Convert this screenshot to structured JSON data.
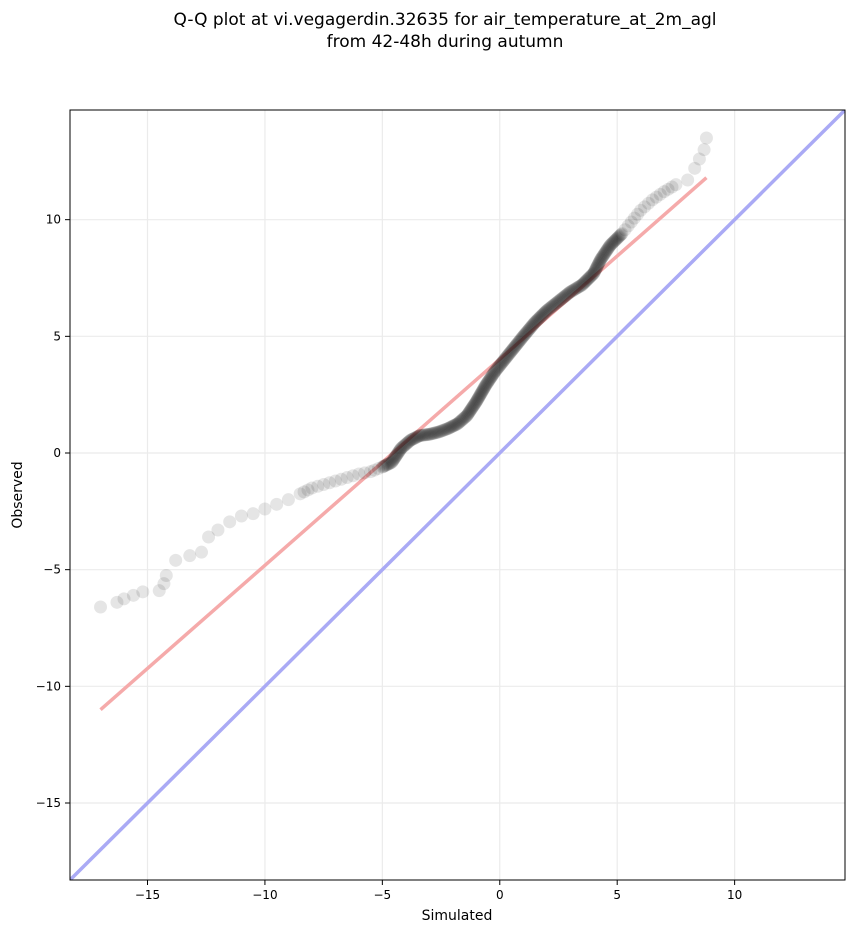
{
  "chart_data": {
    "type": "scatter",
    "title": [
      "Q-Q plot at vi.vegagerdin.32635 for air_temperature_at_2m_agl",
      "from 42-48h during autumn"
    ],
    "xlabel": "Simulated",
    "ylabel": "Observed",
    "xlim": [
      -18.3,
      14.7
    ],
    "ylim": [
      -18.3,
      14.7
    ],
    "xticks": [
      -15,
      -10,
      -5,
      0,
      5,
      10
    ],
    "yticks": [
      -15,
      -10,
      -5,
      0,
      5,
      10
    ],
    "xtick_labels": [
      "−15",
      "−10",
      "−5",
      "0",
      "5",
      "10"
    ],
    "ytick_labels": [
      "−15",
      "−10",
      "−5",
      "0",
      "5",
      "10"
    ],
    "grid": true,
    "reference_line": {
      "points": [
        [
          -18.3,
          -18.3
        ],
        [
          14.7,
          14.7
        ]
      ],
      "color": "#aaaaf5"
    },
    "fit_line": {
      "points": [
        [
          -17.0,
          -11.0
        ],
        [
          8.8,
          11.8
        ]
      ],
      "color": "#f5aaaa"
    },
    "points_color": "#000000",
    "quantile_curve": [
      [
        -17.0,
        -6.6
      ],
      [
        -16.3,
        -6.4
      ],
      [
        -16.0,
        -6.25
      ],
      [
        -15.2,
        -5.95
      ],
      [
        -14.5,
        -5.9
      ],
      [
        -14.3,
        -5.6
      ],
      [
        -14.2,
        -5.25
      ],
      [
        -13.8,
        -4.6
      ],
      [
        -13.2,
        -4.4
      ],
      [
        -12.7,
        -4.25
      ],
      [
        -12.4,
        -3.6
      ],
      [
        -12.0,
        -3.3
      ],
      [
        -11.5,
        -2.95
      ],
      [
        -11.0,
        -2.7
      ],
      [
        -10.5,
        -2.6
      ],
      [
        -10.0,
        -2.4
      ],
      [
        -9.5,
        -2.2
      ],
      [
        -9.0,
        -2.0
      ],
      [
        -8.5,
        -1.75
      ],
      [
        -8.0,
        -1.5
      ],
      [
        -7.5,
        -1.35
      ],
      [
        -7.0,
        -1.2
      ],
      [
        -6.5,
        -1.05
      ],
      [
        -6.0,
        -0.9
      ],
      [
        -5.5,
        -0.8
      ],
      [
        -5.0,
        -0.6
      ],
      [
        -4.6,
        -0.4
      ],
      [
        -4.2,
        0.2
      ],
      [
        -3.8,
        0.55
      ],
      [
        -3.4,
        0.75
      ],
      [
        -3.0,
        0.8
      ],
      [
        -2.6,
        0.9
      ],
      [
        -2.2,
        1.05
      ],
      [
        -1.8,
        1.25
      ],
      [
        -1.4,
        1.6
      ],
      [
        -1.0,
        2.2
      ],
      [
        -0.6,
        2.9
      ],
      [
        -0.2,
        3.5
      ],
      [
        0.2,
        4.0
      ],
      [
        0.6,
        4.5
      ],
      [
        1.0,
        5.0
      ],
      [
        1.5,
        5.6
      ],
      [
        2.0,
        6.1
      ],
      [
        2.5,
        6.5
      ],
      [
        3.0,
        6.9
      ],
      [
        3.5,
        7.2
      ],
      [
        4.0,
        7.7
      ],
      [
        4.3,
        8.3
      ],
      [
        4.7,
        8.9
      ],
      [
        5.2,
        9.4
      ],
      [
        5.6,
        9.9
      ],
      [
        6.0,
        10.4
      ],
      [
        6.5,
        10.85
      ],
      [
        7.0,
        11.2
      ],
      [
        7.5,
        11.5
      ],
      [
        8.0,
        11.7
      ],
      [
        8.3,
        12.2
      ],
      [
        8.5,
        12.6
      ],
      [
        8.7,
        13.0
      ],
      [
        8.8,
        13.5
      ]
    ]
  }
}
